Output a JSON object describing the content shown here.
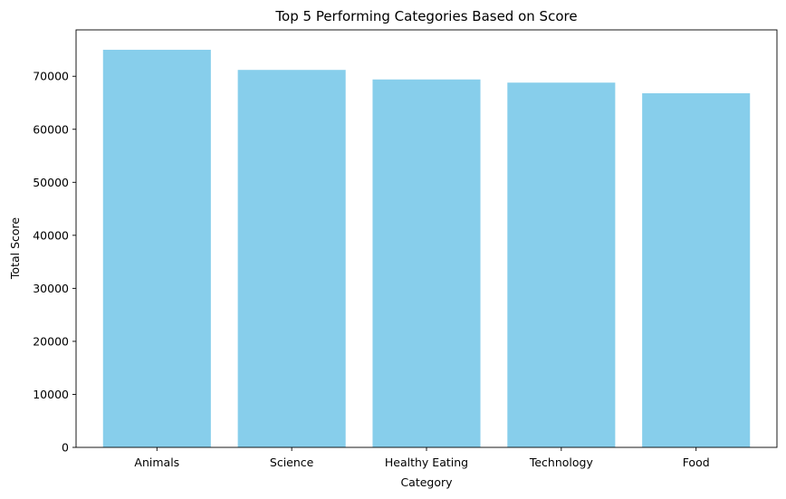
{
  "chart_data": {
    "type": "bar",
    "title": "Top 5 Performing Categories Based on Score",
    "xlabel": "Category",
    "ylabel": "Total Score",
    "categories": [
      "Animals",
      "Science",
      "Healthy Eating",
      "Technology",
      "Food"
    ],
    "values": [
      75000,
      71200,
      69400,
      68800,
      66800
    ],
    "ylim": [
      0,
      78750
    ],
    "yticks": [
      0,
      10000,
      20000,
      30000,
      40000,
      50000,
      60000,
      70000
    ],
    "ytick_labels": [
      "0",
      "10000",
      "20000",
      "30000",
      "40000",
      "50000",
      "60000",
      "70000"
    ],
    "bar_color": "#87CEEB",
    "grid": false,
    "legend": "none"
  }
}
